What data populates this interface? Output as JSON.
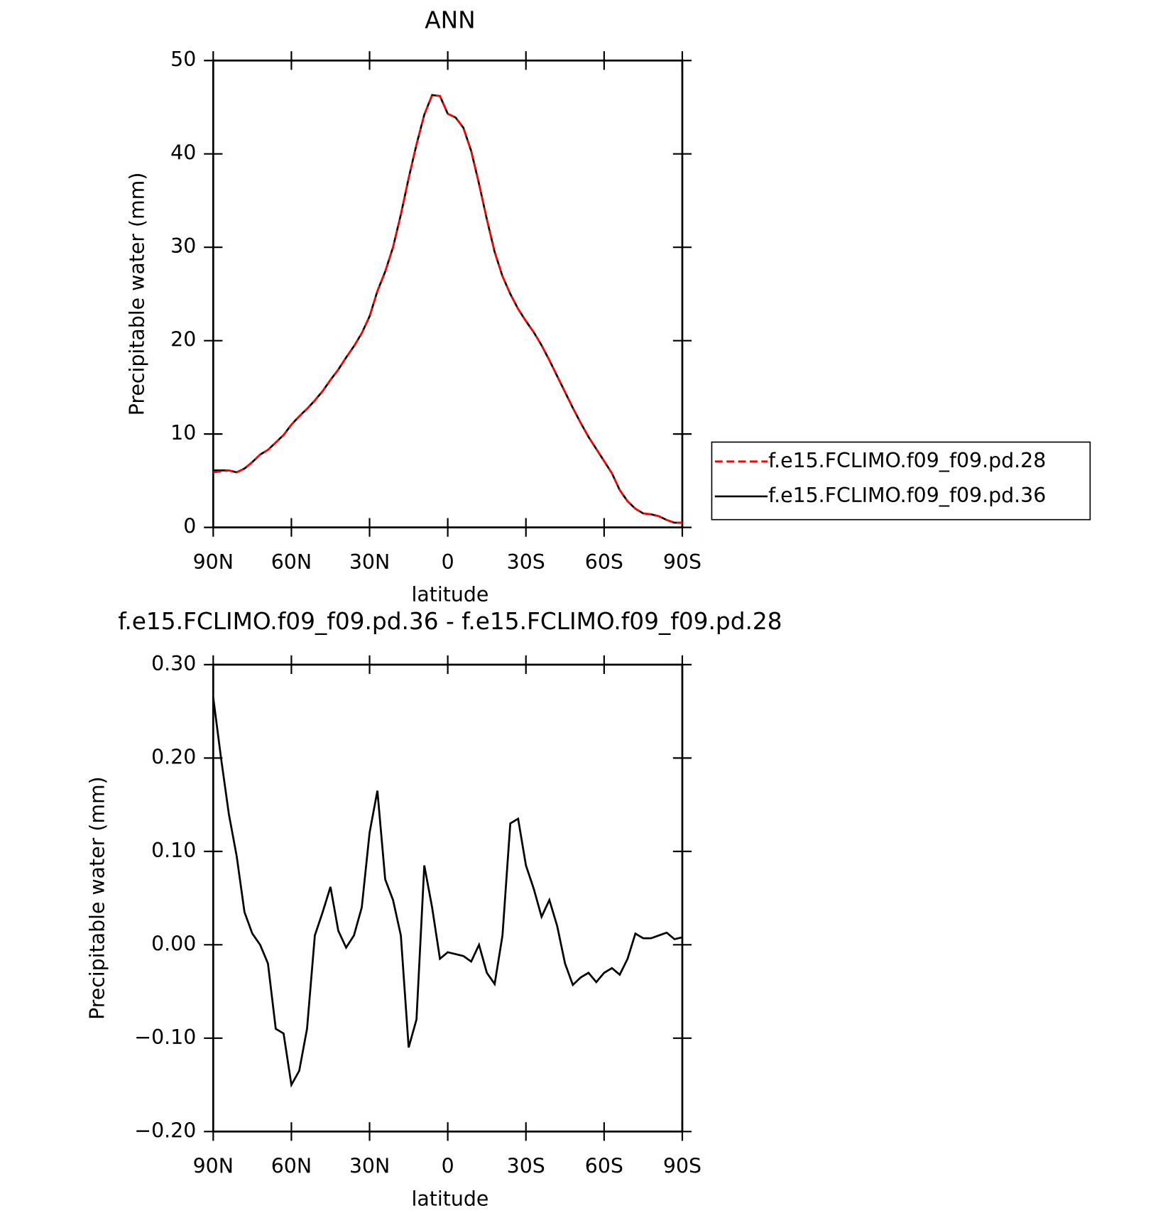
{
  "chart_data": [
    {
      "type": "line",
      "title": "ANN",
      "xlabel": "latitude",
      "ylabel": "Precipitable water (mm)",
      "x": [
        90,
        87,
        84,
        81,
        78,
        75,
        72,
        69,
        66,
        63,
        60,
        57,
        54,
        51,
        48,
        45,
        42,
        39,
        36,
        33,
        30,
        27,
        24,
        21,
        18,
        15,
        12,
        9,
        6,
        3,
        0,
        -3,
        -6,
        -9,
        -12,
        -15,
        -18,
        -21,
        -24,
        -27,
        -30,
        -33,
        -36,
        -39,
        -42,
        -45,
        -48,
        -51,
        -54,
        -57,
        -60,
        -63,
        -66,
        -69,
        -72,
        -75,
        -78,
        -81,
        -84,
        -87,
        -90
      ],
      "series": [
        {
          "name": "f.e15.FCLIMO.f09_f09.pd.28",
          "color": "#ff0000",
          "dash": "dashed",
          "values": [
            5.9,
            6.0,
            6.1,
            5.9,
            6.3,
            7.0,
            7.8,
            8.3,
            9.1,
            9.9,
            11.0,
            11.9,
            12.7,
            13.6,
            14.6,
            15.8,
            16.9,
            18.2,
            19.4,
            20.8,
            22.6,
            25.3,
            27.4,
            30.0,
            33.5,
            37.4,
            41.0,
            44.2,
            46.3,
            46.2,
            44.3,
            43.9,
            42.8,
            40.3,
            36.8,
            33.0,
            29.5,
            26.9,
            25.0,
            23.4,
            22.1,
            20.9,
            19.5,
            17.9,
            16.2,
            14.5,
            12.8,
            11.2,
            9.7,
            8.4,
            7.1,
            5.8,
            4.0,
            2.8,
            2.0,
            1.5,
            1.4,
            1.2,
            0.8,
            0.5,
            0.5
          ]
        },
        {
          "name": "f.e15.FCLIMO.f09_f09.pd.36",
          "color": "#000000",
          "dash": "solid",
          "values": [
            6.1,
            6.1,
            6.1,
            5.9,
            6.3,
            7.0,
            7.8,
            8.3,
            9.1,
            9.9,
            11.0,
            11.9,
            12.7,
            13.6,
            14.6,
            15.8,
            16.9,
            18.2,
            19.4,
            20.8,
            22.6,
            25.3,
            27.4,
            30.0,
            33.5,
            37.4,
            41.0,
            44.2,
            46.3,
            46.2,
            44.3,
            43.9,
            42.8,
            40.3,
            36.8,
            33.0,
            29.5,
            26.9,
            25.0,
            23.4,
            22.1,
            20.9,
            19.5,
            17.9,
            16.2,
            14.5,
            12.8,
            11.2,
            9.7,
            8.4,
            7.1,
            5.8,
            4.0,
            2.8,
            2.0,
            1.5,
            1.4,
            1.2,
            0.8,
            0.5,
            0.5
          ]
        }
      ],
      "xlim": [
        90,
        -90
      ],
      "xticks": [
        {
          "value": 90,
          "label": "90N"
        },
        {
          "value": 60,
          "label": "60N"
        },
        {
          "value": 30,
          "label": "30N"
        },
        0,
        {
          "value": -30,
          "label": "30S"
        },
        {
          "value": -60,
          "label": "60S"
        },
        {
          "value": -90,
          "label": "90S"
        }
      ],
      "ylim": [
        0,
        50
      ],
      "yticks": [
        0,
        10,
        20,
        30,
        40,
        50
      ],
      "legend": "right"
    },
    {
      "type": "line",
      "title": "f.e15.FCLIMO.f09_f09.pd.36 - f.e15.FCLIMO.f09_f09.pd.28",
      "xlabel": "latitude",
      "ylabel": "Precipitable water (mm)",
      "x": [
        90,
        87,
        84,
        81,
        78,
        75,
        72,
        69,
        66,
        63,
        60,
        57,
        54,
        51,
        48,
        45,
        42,
        39,
        36,
        33,
        30,
        27,
        24,
        21,
        18,
        15,
        12,
        9,
        6,
        3,
        0,
        -3,
        -6,
        -9,
        -12,
        -15,
        -18,
        -21,
        -24,
        -27,
        -30,
        -33,
        -36,
        -39,
        -42,
        -45,
        -48,
        -51,
        -54,
        -57,
        -60,
        -63,
        -66,
        -69,
        -72,
        -75,
        -78,
        -81,
        -84,
        -87,
        -90
      ],
      "series": [
        {
          "color": "#000000",
          "dash": "solid",
          "values": [
            0.265,
            0.2,
            0.14,
            0.095,
            0.035,
            0.012,
            0.0,
            -0.02,
            -0.09,
            -0.095,
            -0.15,
            -0.135,
            -0.09,
            0.01,
            0.035,
            0.062,
            0.015,
            -0.003,
            0.01,
            0.04,
            0.12,
            0.165,
            0.07,
            0.048,
            0.01,
            -0.11,
            -0.08,
            0.085,
            0.04,
            -0.015,
            -0.008,
            -0.01,
            -0.012,
            -0.018,
            0.0,
            -0.03,
            -0.042,
            0.01,
            0.13,
            0.135,
            0.085,
            0.06,
            0.03,
            0.048,
            0.02,
            -0.02,
            -0.043,
            -0.035,
            -0.03,
            -0.04,
            -0.03,
            -0.025,
            -0.032,
            -0.015,
            0.012,
            0.007,
            0.007,
            0.01,
            0.013,
            0.006,
            0.008
          ]
        }
      ],
      "xlim": [
        90,
        -90
      ],
      "xticks": [
        {
          "value": 90,
          "label": "90N"
        },
        {
          "value": 60,
          "label": "60N"
        },
        {
          "value": 30,
          "label": "30N"
        },
        0,
        {
          "value": -30,
          "label": "30S"
        },
        {
          "value": -60,
          "label": "60S"
        },
        {
          "value": -90,
          "label": "90S"
        }
      ],
      "ylim": [
        -0.2,
        0.3
      ],
      "yticks": [
        {
          "value": -0.2,
          "label": "−0.20"
        },
        {
          "value": -0.1,
          "label": "−0.10"
        },
        {
          "value": 0,
          "label": "0.00"
        },
        {
          "value": 0.1,
          "label": "0.10"
        },
        {
          "value": 0.2,
          "label": "0.20"
        },
        {
          "value": 0.3,
          "label": "0.30"
        }
      ]
    }
  ]
}
